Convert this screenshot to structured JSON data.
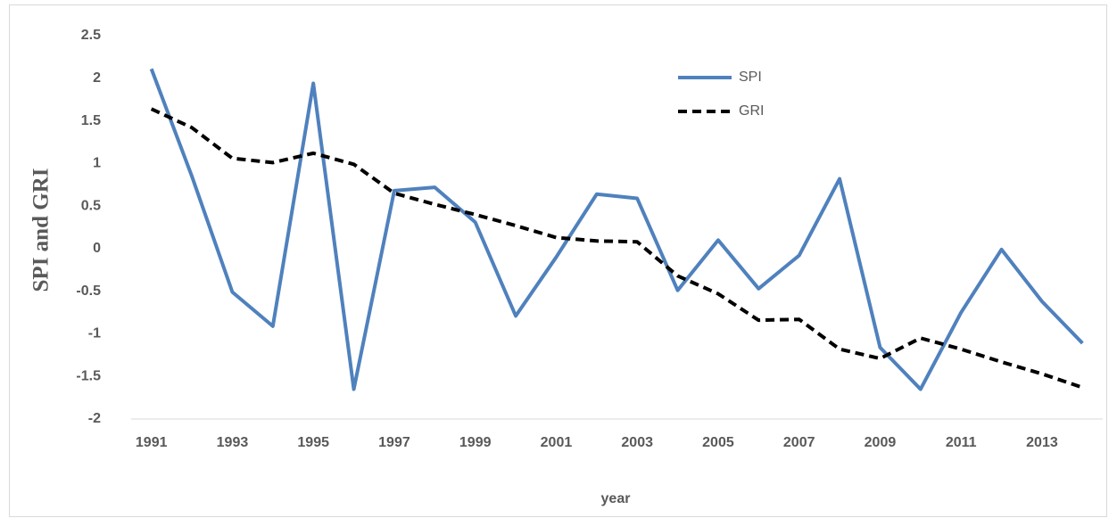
{
  "chart_data": {
    "type": "line",
    "y_label": "SPI and GRI",
    "x_label": "year",
    "x": [
      1991,
      1992,
      1993,
      1994,
      1995,
      1996,
      1997,
      1998,
      1999,
      2000,
      2001,
      2002,
      2003,
      2004,
      2005,
      2006,
      2007,
      2008,
      2009,
      2010,
      2011,
      2012,
      2013,
      2014
    ],
    "xlim": [
      1990.5,
      2014.5
    ],
    "xticks": [
      1991,
      1993,
      1995,
      1997,
      1999,
      2001,
      2003,
      2005,
      2007,
      2009,
      2011,
      2013
    ],
    "ylim": [
      -2,
      2.5
    ],
    "yticks": [
      2.5,
      2,
      1.5,
      1,
      0.5,
      0,
      -0.5,
      -1,
      -1.5,
      -2
    ],
    "legend": "top-right",
    "series": [
      {
        "name": "SPI",
        "color": "#4f81bd",
        "dash": "solid",
        "values": [
          2.11,
          0.85,
          -0.51,
          -0.91,
          1.94,
          -1.65,
          0.68,
          0.72,
          0.31,
          -0.79,
          -0.1,
          0.64,
          0.59,
          -0.49,
          0.1,
          -0.47,
          -0.08,
          0.82,
          -1.16,
          -1.65,
          -0.75,
          -0.01,
          -0.62,
          -1.11
        ]
      },
      {
        "name": "GRI",
        "color": "#000000",
        "dash": "dashed",
        "values": [
          1.64,
          1.42,
          1.06,
          1.01,
          1.12,
          0.99,
          0.65,
          0.52,
          0.4,
          0.27,
          0.13,
          0.09,
          0.08,
          -0.32,
          -0.53,
          -0.84,
          -0.83,
          -1.18,
          -1.29,
          -1.05,
          -1.18,
          -1.33,
          -1.47,
          -1.63
        ]
      }
    ]
  }
}
